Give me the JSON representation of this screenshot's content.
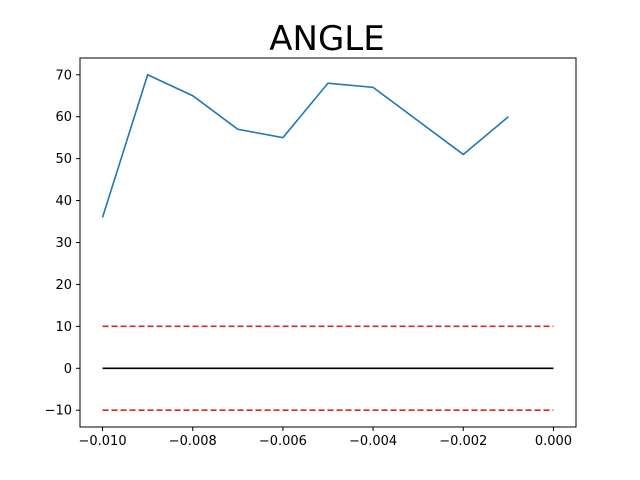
{
  "chart_data": {
    "type": "line",
    "title": "ANGLE",
    "xlabel": "",
    "ylabel": "",
    "xlim": [
      -0.0105,
      0.0005
    ],
    "ylim": [
      -14,
      74
    ],
    "x_ticks": [
      -0.01,
      -0.008,
      -0.006,
      -0.004,
      -0.002,
      0.0
    ],
    "x_tick_labels": [
      "−0.010",
      "−0.008",
      "−0.006",
      "−0.004",
      "−0.002",
      "0.000"
    ],
    "y_ticks": [
      -10,
      0,
      10,
      20,
      30,
      40,
      50,
      60,
      70
    ],
    "y_tick_labels": [
      "−10",
      "0",
      "10",
      "20",
      "30",
      "40",
      "50",
      "60",
      "70"
    ],
    "grid": false,
    "series": [
      {
        "color": "#1f77b4",
        "style": "solid",
        "x": [
          -0.01,
          -0.009,
          -0.008,
          -0.007,
          -0.006,
          -0.005,
          -0.004,
          -0.003,
          -0.002,
          -0.001
        ],
        "y": [
          36,
          70,
          65,
          57,
          55,
          68,
          67,
          59,
          51,
          60
        ]
      },
      {
        "color": "#000000",
        "style": "solid",
        "x": [
          -0.01,
          0.0
        ],
        "y": [
          0,
          0
        ]
      },
      {
        "color": "#d62728",
        "style": "dashed",
        "x": [
          -0.01,
          0.0
        ],
        "y": [
          10,
          10
        ]
      },
      {
        "color": "#d62728",
        "style": "dashed",
        "x": [
          -0.01,
          0.0
        ],
        "y": [
          -10,
          -10
        ]
      }
    ]
  }
}
